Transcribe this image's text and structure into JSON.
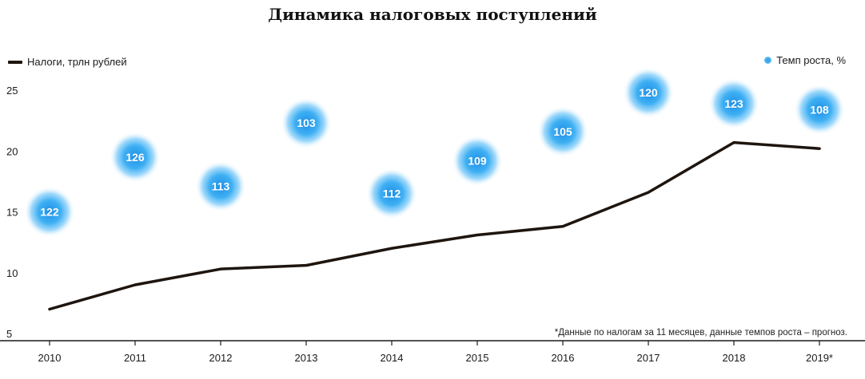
{
  "chart_data": {
    "type": "line",
    "title": "Динамика налоговых поступлений",
    "categories": [
      "2010",
      "2011",
      "2012",
      "2013",
      "2014",
      "2015",
      "2016",
      "2017",
      "2018",
      "2019*"
    ],
    "series": [
      {
        "name": "Налоги, трлн рублей",
        "values": [
          7.0,
          9.0,
          10.3,
          10.6,
          12.0,
          13.1,
          13.8,
          16.6,
          20.7,
          20.2
        ]
      },
      {
        "name": "Темп роста, %",
        "values": [
          122,
          126,
          113,
          103,
          112,
          109,
          105,
          120,
          123,
          108
        ],
        "display_level": [
          15,
          19.5,
          17.1,
          22.3,
          16.5,
          19.2,
          21.6,
          24.8,
          23.9,
          23.4
        ]
      }
    ],
    "yticks": [
      5,
      10,
      15,
      20,
      25
    ],
    "ylim": [
      4.5,
      27
    ],
    "line_color": "#1e150f",
    "bubble_color": "#3aa7ef"
  },
  "legend": {
    "line_label": "Налоги, трлн рублей",
    "dot_label": "Темп роста, %"
  },
  "footnote": "*Данные по налогам за 11 месяцев, данные темпов роста – прогноз."
}
